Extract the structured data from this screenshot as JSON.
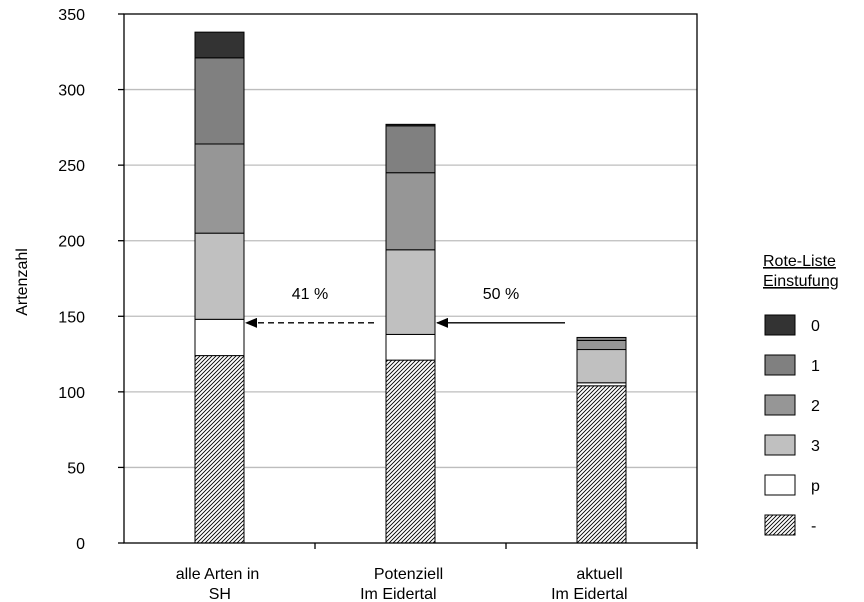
{
  "chart_data": {
    "type": "bar",
    "stacked": true,
    "categories": [
      [
        "alle Arten in",
        "SH"
      ],
      [
        "Potenziell",
        "Im Eidertal"
      ],
      [
        "aktuell",
        "Im Eidertal"
      ]
    ],
    "series": [
      {
        "name": "-",
        "values": [
          124,
          121,
          104
        ],
        "color": "#ffffff",
        "pattern": "hatch"
      },
      {
        "name": "p",
        "values": [
          24,
          17,
          2
        ],
        "color": "#ffffff"
      },
      {
        "name": "3",
        "values": [
          57,
          56,
          22
        ],
        "color": "#c0c0c0"
      },
      {
        "name": "2",
        "values": [
          59,
          51,
          6
        ],
        "color": "#969696"
      },
      {
        "name": "1",
        "values": [
          57,
          31,
          2
        ],
        "color": "#808080"
      },
      {
        "name": "0",
        "values": [
          17,
          1,
          0
        ],
        "color": "#333333"
      }
    ],
    "ylabel": "Artenzahl",
    "xlabel": "",
    "ylim": [
      0,
      350
    ],
    "yticks": [
      0,
      50,
      100,
      150,
      200,
      250,
      300,
      350
    ],
    "grid": true,
    "legend": {
      "title_lines": [
        "Rote-Liste",
        "Einstufung"
      ],
      "order": [
        "0",
        "1",
        "2",
        "3",
        "p",
        "-"
      ],
      "placement": "right"
    },
    "annotations": [
      {
        "text": "41 %",
        "style": "dashed",
        "from_category": 1,
        "to_category": 0,
        "y": 147
      },
      {
        "text": "50 %",
        "style": "solid",
        "from_category": 2,
        "to_category": 1,
        "y": 147
      }
    ]
  }
}
